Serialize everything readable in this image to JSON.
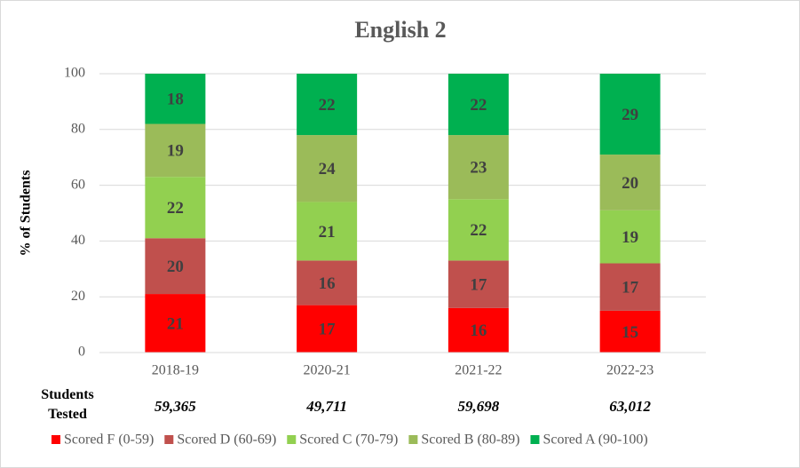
{
  "chart_data": {
    "type": "stacked_bar",
    "title": "English 2",
    "y_label": "% of Students",
    "categories": [
      "2018-19",
      "2020-21",
      "2021-22",
      "2022-23"
    ],
    "series": [
      {
        "name": "Scored F (0-59)",
        "color": "#ff0000",
        "values": [
          21,
          17,
          16,
          15
        ]
      },
      {
        "name": "Scored D (60-69)",
        "color": "#c0504d",
        "values": [
          20,
          16,
          17,
          17
        ]
      },
      {
        "name": "Scored C (70-79)",
        "color": "#92d050",
        "values": [
          22,
          21,
          22,
          19
        ]
      },
      {
        "name": "Scored B (80-89)",
        "color": "#9bbb59",
        "values": [
          19,
          24,
          23,
          20
        ]
      },
      {
        "name": "Scored A (90-100)",
        "color": "#00b050",
        "values": [
          18,
          22,
          22,
          29
        ]
      }
    ],
    "ylim": [
      0,
      100
    ],
    "yticks": [
      0,
      20,
      40,
      60,
      80,
      100
    ],
    "grid": true,
    "students_tested_label": "Students Tested",
    "students_tested": [
      "59,365",
      "49,711",
      "59,698",
      "63,012"
    ],
    "legend": "bottom"
  }
}
